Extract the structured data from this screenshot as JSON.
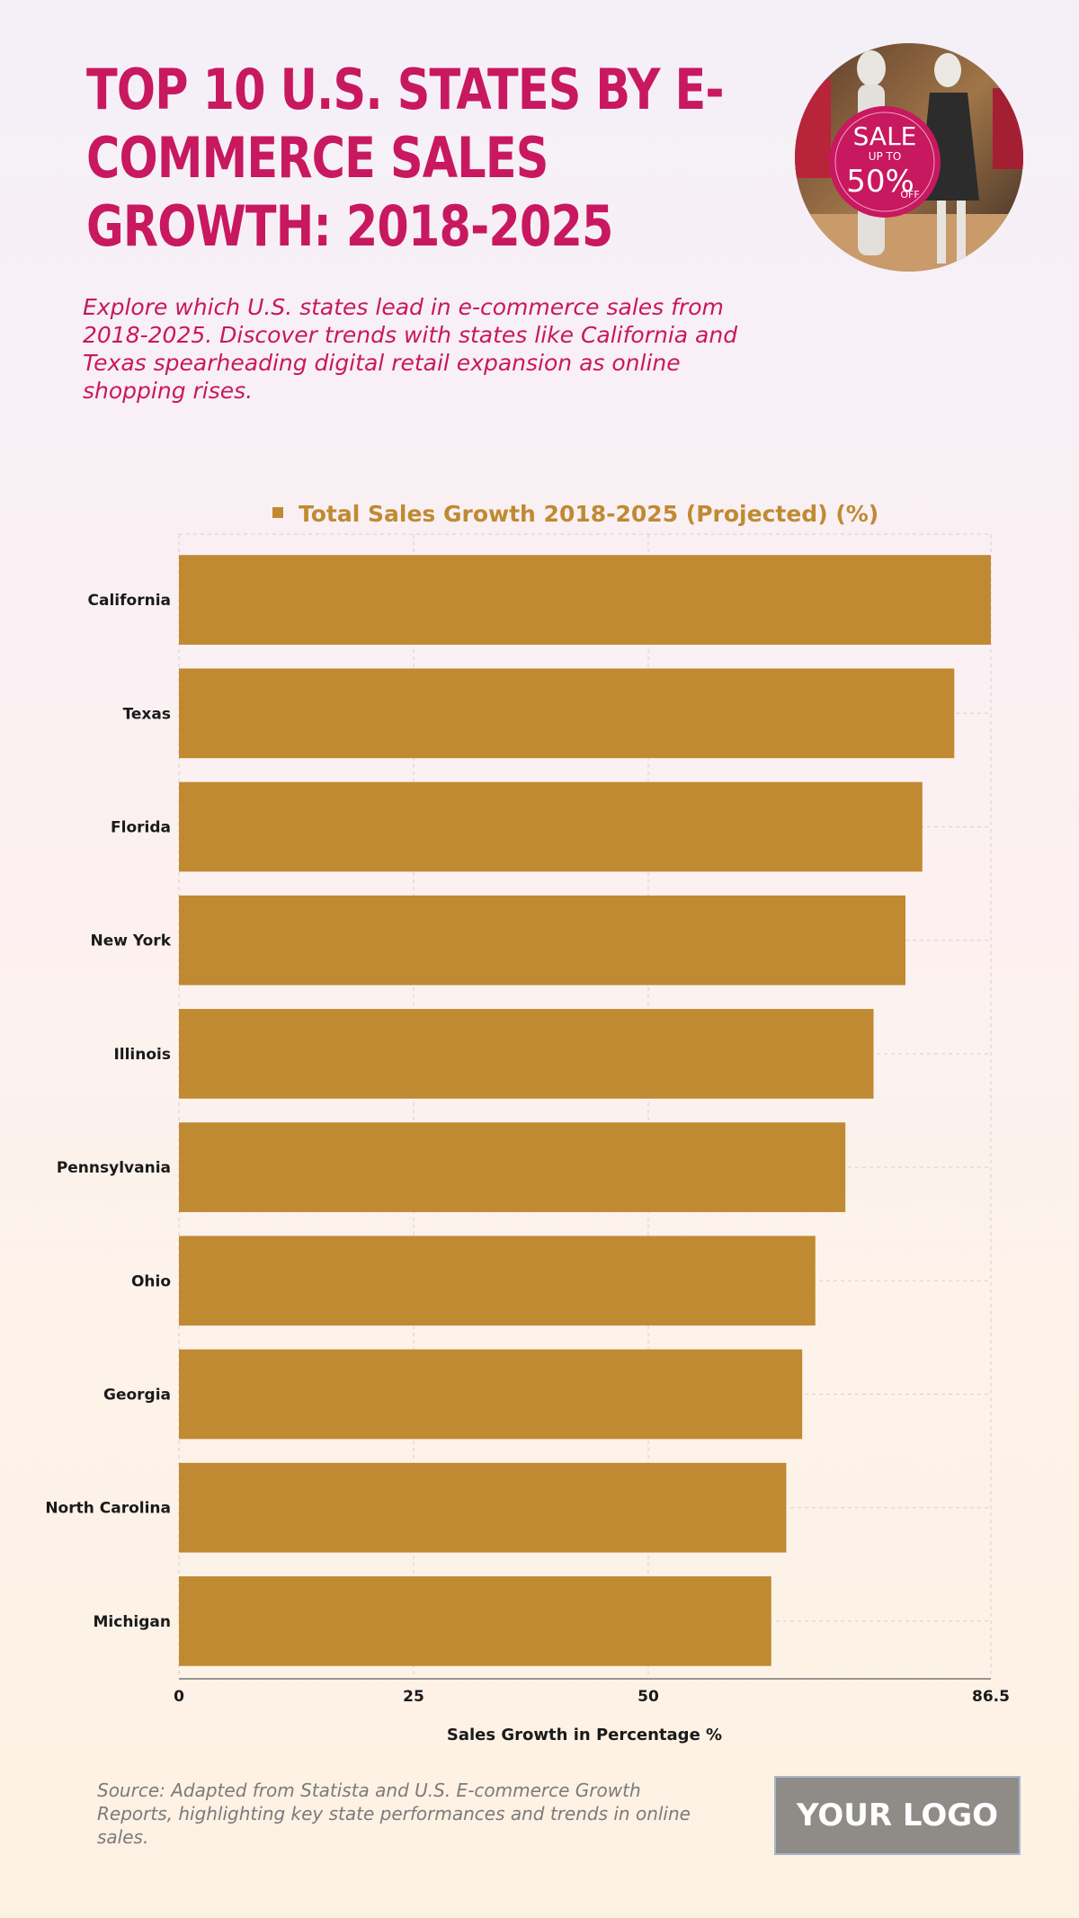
{
  "header": {
    "title": "TOP 10 U.S. STATES BY E-COMMERCE SALES GROWTH: 2018-2025",
    "subtitle": "Explore which U.S. states lead in e-commerce sales from 2018-2025. Discover trends with states like California and Texas spearheading digital retail expansion as online shopping rises."
  },
  "photo": {
    "sign_line1": "SALE",
    "sign_line2": "UP TO",
    "sign_line3": "50%",
    "sign_line4": "OFF"
  },
  "footer": {
    "source": "Source: Adapted from Statista and U.S. E-commerce Growth Reports, highlighting key state performances and trends in online sales.",
    "logo": "YOUR LOGO"
  },
  "colors": {
    "title": "#c8185f",
    "bar": "#c08a32",
    "legend_text": "#c08a32"
  },
  "chart_data": {
    "type": "bar",
    "orientation": "horizontal",
    "categories": [
      "California",
      "Texas",
      "Florida",
      "New York",
      "Illinois",
      "Pennsylvania",
      "Ohio",
      "Georgia",
      "North Carolina",
      "Michigan"
    ],
    "series": [
      {
        "name": "Total Sales Growth 2018-2025 (Projected) (%)",
        "values": [
          86.5,
          82.6,
          79.2,
          77.4,
          74.0,
          71.0,
          67.8,
          66.4,
          64.7,
          63.1
        ]
      }
    ],
    "xlabel": "Sales Growth in Percentage %",
    "ylabel": "",
    "xlim": [
      0,
      86.5
    ],
    "xticks": [
      0,
      25,
      50,
      86.5
    ],
    "xtick_labels": [
      "0",
      "25",
      "50",
      "86.5"
    ],
    "grid": true,
    "legend_position": "top"
  }
}
